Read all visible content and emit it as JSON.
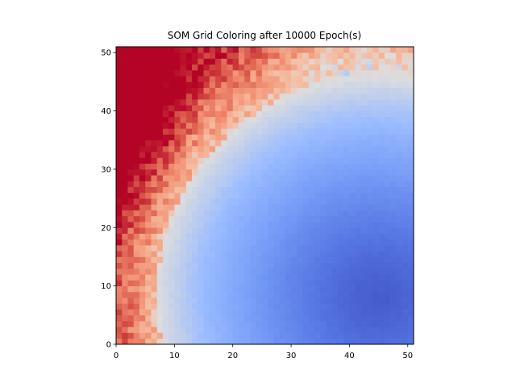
{
  "chart_data": {
    "type": "heatmap",
    "title": "SOM Grid Coloring after 10000 Epoch(s)",
    "xlabel": "",
    "ylabel": "",
    "xlim": [
      0,
      51
    ],
    "ylim": [
      0,
      51
    ],
    "grid_size": [
      51,
      51
    ],
    "x_ticks": [
      0,
      10,
      20,
      30,
      40,
      50
    ],
    "y_ticks": [
      0,
      10,
      20,
      30,
      40,
      50
    ],
    "x_tick_labels": [
      "0",
      "10",
      "20",
      "30",
      "40",
      "50"
    ],
    "y_tick_labels": [
      "0",
      "10",
      "20",
      "30",
      "40",
      "50"
    ],
    "colormap": "coolwarm",
    "colormap_endpoints": [
      "#3b4cc0",
      "#dddddd",
      "#b40426"
    ],
    "value_range": [
      0,
      1
    ],
    "field_description_values": {
      "cool_center": [
        45,
        8
      ],
      "cool_radius": 38,
      "transition_width": 11,
      "hot_corner": [
        0,
        51
      ],
      "noise_amplitude": 0.09
    },
    "grid": false,
    "legend": "none"
  }
}
